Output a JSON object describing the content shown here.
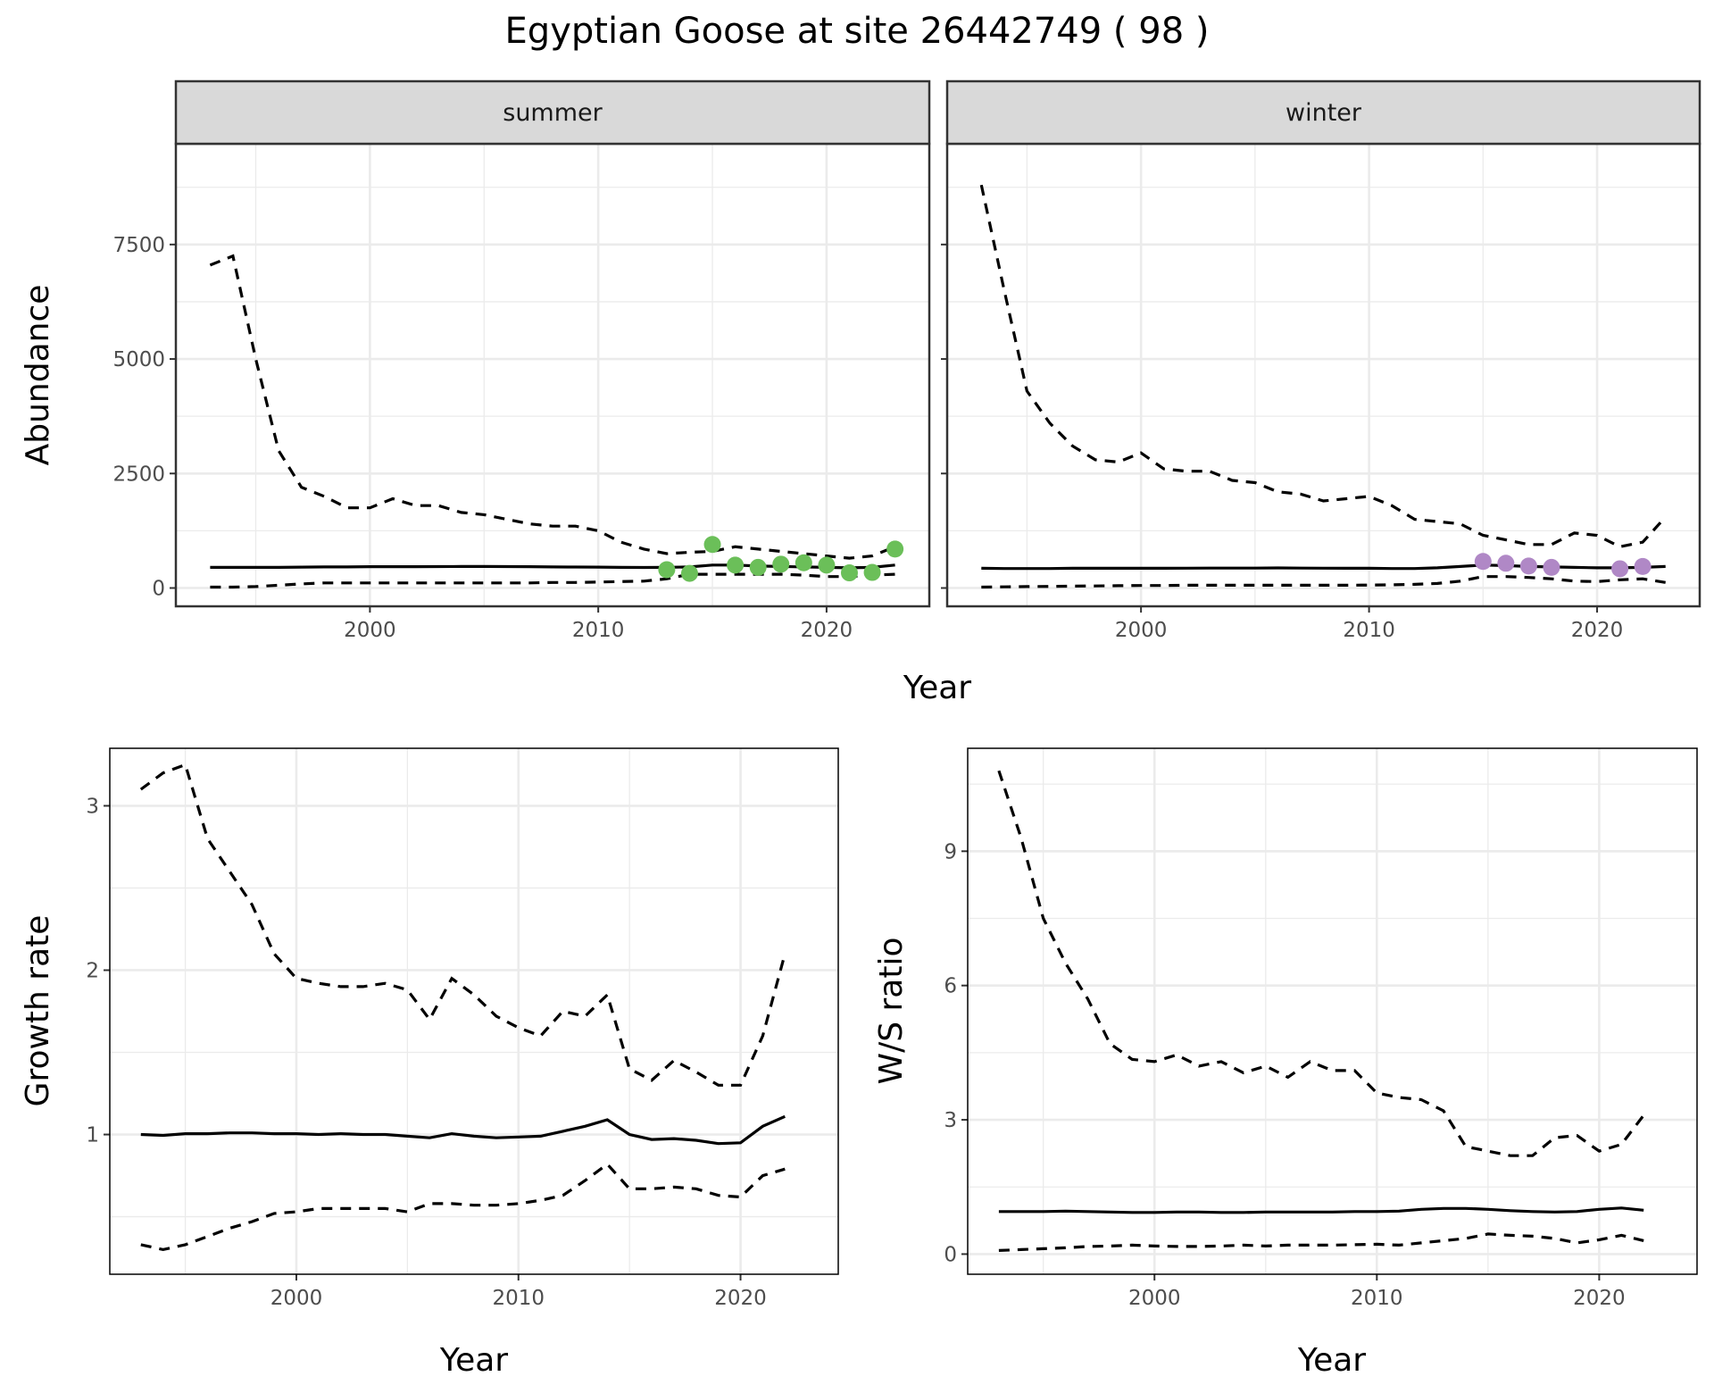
{
  "title": "Egyptian Goose at site 26442749 ( 98 )",
  "colors": {
    "summer_points": "#6bbf59",
    "winter_points": "#b088c6",
    "line": "#000000",
    "strip": "#d9d9d9",
    "grid": "#ebebeb"
  },
  "chart_data": [
    {
      "type": "line",
      "panel": "summer",
      "strip_label": "summer",
      "xlabel": "Year",
      "ylabel": "Abundance",
      "xlim": [
        1991.5,
        2024.5
      ],
      "ylim": [
        -400,
        9700
      ],
      "xticks": [
        2000,
        2010,
        2020
      ],
      "yticks": [
        0,
        2500,
        5000,
        7500
      ],
      "x": [
        1993,
        1994,
        1995,
        1996,
        1997,
        1998,
        1999,
        2000,
        2001,
        2002,
        2003,
        2004,
        2005,
        2006,
        2007,
        2008,
        2009,
        2010,
        2011,
        2012,
        2013,
        2014,
        2015,
        2016,
        2017,
        2018,
        2019,
        2020,
        2021,
        2022,
        2023
      ],
      "series": [
        {
          "name": "mean",
          "style": "solid",
          "values": [
            450,
            450,
            450,
            450,
            455,
            460,
            460,
            465,
            465,
            465,
            468,
            470,
            470,
            468,
            465,
            460,
            458,
            455,
            450,
            448,
            450,
            460,
            500,
            500,
            480,
            470,
            460,
            450,
            440,
            450,
            500
          ]
        },
        {
          "name": "upper",
          "style": "dashed",
          "values": [
            7050,
            7250,
            5000,
            3000,
            2200,
            2000,
            1750,
            1750,
            1950,
            1800,
            1800,
            1650,
            1600,
            1500,
            1400,
            1350,
            1350,
            1250,
            1000,
            850,
            750,
            780,
            800,
            900,
            850,
            800,
            750,
            700,
            650,
            700,
            900
          ]
        },
        {
          "name": "lower",
          "style": "dashed",
          "values": [
            20,
            20,
            30,
            60,
            90,
            110,
            110,
            110,
            110,
            110,
            110,
            110,
            110,
            110,
            110,
            120,
            120,
            130,
            140,
            150,
            200,
            300,
            300,
            300,
            300,
            300,
            280,
            250,
            250,
            280,
            300
          ]
        }
      ],
      "points": {
        "x": [
          2013,
          2014,
          2015,
          2016,
          2017,
          2018,
          2019,
          2020,
          2021,
          2022,
          2023
        ],
        "y": [
          400,
          320,
          950,
          500,
          450,
          520,
          550,
          500,
          330,
          340,
          850
        ]
      }
    },
    {
      "type": "line",
      "panel": "winter",
      "strip_label": "winter",
      "xlabel": "Year",
      "ylabel": "Abundance",
      "xlim": [
        1991.5,
        2024.5
      ],
      "ylim": [
        -400,
        9700
      ],
      "xticks": [
        2000,
        2010,
        2020
      ],
      "yticks": [
        0,
        2500,
        5000,
        7500
      ],
      "x": [
        1993,
        1994,
        1995,
        1996,
        1997,
        1998,
        1999,
        2000,
        2001,
        2002,
        2003,
        2004,
        2005,
        2006,
        2007,
        2008,
        2009,
        2010,
        2011,
        2012,
        2013,
        2014,
        2015,
        2016,
        2017,
        2018,
        2019,
        2020,
        2021,
        2022,
        2023
      ],
      "series": [
        {
          "name": "mean",
          "style": "solid",
          "values": [
            430,
            425,
            425,
            425,
            430,
            430,
            430,
            430,
            430,
            432,
            435,
            435,
            435,
            438,
            435,
            432,
            430,
            430,
            425,
            425,
            440,
            470,
            500,
            490,
            470,
            460,
            450,
            440,
            440,
            450,
            470
          ]
        },
        {
          "name": "upper",
          "style": "dashed",
          "values": [
            8800,
            6500,
            4300,
            3600,
            3100,
            2800,
            2750,
            2950,
            2600,
            2550,
            2550,
            2350,
            2300,
            2100,
            2050,
            1900,
            1950,
            2000,
            1800,
            1500,
            1450,
            1400,
            1150,
            1050,
            950,
            950,
            1200,
            1150,
            900,
            1000,
            1550
          ]
        },
        {
          "name": "lower",
          "style": "dashed",
          "values": [
            20,
            25,
            30,
            35,
            40,
            45,
            50,
            55,
            55,
            60,
            60,
            60,
            60,
            60,
            60,
            60,
            60,
            65,
            70,
            80,
            100,
            150,
            250,
            250,
            230,
            200,
            150,
            140,
            180,
            200,
            120
          ]
        }
      ],
      "points": {
        "x": [
          2015,
          2016,
          2017,
          2018,
          2021,
          2022
        ],
        "y": [
          580,
          540,
          480,
          450,
          420,
          470
        ]
      }
    },
    {
      "type": "line",
      "panel": "growth",
      "xlabel": "Year",
      "ylabel": "Growth rate",
      "xlim": [
        1991.6,
        2024.4
      ],
      "ylim": [
        0.15,
        3.35
      ],
      "xticks": [
        2000,
        2010,
        2020
      ],
      "yticks": [
        1,
        2,
        3
      ],
      "x": [
        1993,
        1994,
        1995,
        1996,
        1997,
        1998,
        1999,
        2000,
        2001,
        2002,
        2003,
        2004,
        2005,
        2006,
        2007,
        2008,
        2009,
        2010,
        2011,
        2012,
        2013,
        2014,
        2015,
        2016,
        2017,
        2018,
        2019,
        2020,
        2021,
        2022
      ],
      "series": [
        {
          "name": "mean",
          "style": "solid",
          "values": [
            1.0,
            0.995,
            1.005,
            1.005,
            1.01,
            1.01,
            1.005,
            1.005,
            1.0,
            1.005,
            1.0,
            1.0,
            0.99,
            0.98,
            1.005,
            0.99,
            0.98,
            0.985,
            0.99,
            1.02,
            1.05,
            1.09,
            1.0,
            0.97,
            0.975,
            0.965,
            0.945,
            0.95,
            1.05,
            1.11
          ]
        },
        {
          "name": "upper",
          "style": "dashed",
          "values": [
            3.1,
            3.2,
            3.25,
            2.8,
            2.6,
            2.4,
            2.1,
            1.95,
            1.92,
            1.9,
            1.9,
            1.92,
            1.88,
            1.7,
            1.95,
            1.85,
            1.72,
            1.65,
            1.6,
            1.75,
            1.72,
            1.85,
            1.4,
            1.33,
            1.45,
            1.38,
            1.3,
            1.3,
            1.6,
            2.1
          ]
        },
        {
          "name": "lower",
          "style": "dashed",
          "values": [
            0.33,
            0.3,
            0.33,
            0.38,
            0.43,
            0.47,
            0.52,
            0.53,
            0.55,
            0.55,
            0.55,
            0.55,
            0.53,
            0.58,
            0.58,
            0.57,
            0.57,
            0.58,
            0.6,
            0.63,
            0.72,
            0.82,
            0.67,
            0.67,
            0.68,
            0.67,
            0.63,
            0.62,
            0.75,
            0.79
          ]
        }
      ]
    },
    {
      "type": "line",
      "panel": "ws_ratio",
      "xlabel": "Year",
      "ylabel": "W/S ratio",
      "xlim": [
        1991.6,
        2024.4
      ],
      "ylim": [
        -0.45,
        11.3
      ],
      "xticks": [
        2000,
        2010,
        2020
      ],
      "yticks": [
        0,
        3,
        6,
        9
      ],
      "x": [
        1993,
        1994,
        1995,
        1996,
        1997,
        1998,
        1999,
        2000,
        2001,
        2002,
        2003,
        2004,
        2005,
        2006,
        2007,
        2008,
        2009,
        2010,
        2011,
        2012,
        2013,
        2014,
        2015,
        2016,
        2017,
        2018,
        2019,
        2020,
        2021,
        2022
      ],
      "series": [
        {
          "name": "mean",
          "style": "solid",
          "values": [
            0.95,
            0.95,
            0.95,
            0.96,
            0.95,
            0.94,
            0.93,
            0.93,
            0.94,
            0.94,
            0.93,
            0.93,
            0.94,
            0.94,
            0.94,
            0.94,
            0.95,
            0.95,
            0.96,
            1.0,
            1.02,
            1.02,
            1.0,
            0.97,
            0.95,
            0.94,
            0.95,
            1.0,
            1.03,
            0.98
          ]
        },
        {
          "name": "upper",
          "style": "dashed",
          "values": [
            10.8,
            9.3,
            7.5,
            6.5,
            5.7,
            4.7,
            4.35,
            4.3,
            4.45,
            4.2,
            4.3,
            4.05,
            4.2,
            3.95,
            4.3,
            4.1,
            4.1,
            3.6,
            3.5,
            3.45,
            3.2,
            2.4,
            2.3,
            2.2,
            2.2,
            2.6,
            2.65,
            2.3,
            2.45,
            3.1
          ]
        },
        {
          "name": "lower",
          "style": "dashed",
          "values": [
            0.08,
            0.1,
            0.12,
            0.14,
            0.17,
            0.18,
            0.2,
            0.18,
            0.17,
            0.17,
            0.18,
            0.2,
            0.18,
            0.2,
            0.2,
            0.2,
            0.21,
            0.22,
            0.2,
            0.25,
            0.3,
            0.35,
            0.45,
            0.42,
            0.4,
            0.35,
            0.25,
            0.32,
            0.42,
            0.3
          ]
        }
      ]
    }
  ]
}
